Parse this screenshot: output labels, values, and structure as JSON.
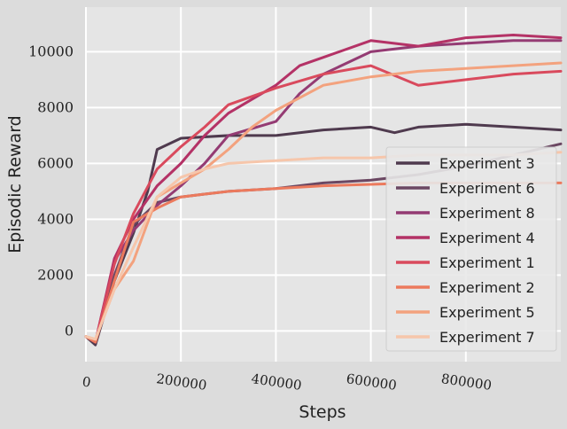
{
  "chart_data": {
    "type": "line",
    "title": "",
    "xlabel": "Steps",
    "ylabel": "Episodic Reward",
    "xlim": [
      0,
      1000000
    ],
    "ylim": [
      -1100,
      11600
    ],
    "x_ticks": [
      0,
      200000,
      400000,
      600000,
      800000
    ],
    "x_tick_labels": [
      "0",
      "200000",
      "400000",
      "600000",
      "800000"
    ],
    "y_ticks": [
      0,
      2000,
      4000,
      6000,
      8000,
      10000
    ],
    "y_tick_labels": [
      "0",
      "2000",
      "4000",
      "6000",
      "8000",
      "10000"
    ],
    "grid": true,
    "legend_position": "center-right",
    "series": [
      {
        "name": "Experiment 3",
        "color": "#4f3a4e",
        "x": [
          0,
          20000,
          60000,
          100000,
          130000,
          150000,
          200000,
          300000,
          400000,
          450000,
          500000,
          600000,
          650000,
          700000,
          800000,
          900000,
          1000000
        ],
        "y": [
          -200,
          -500,
          1800,
          3500,
          5000,
          6500,
          6900,
          7000,
          7000,
          7100,
          7200,
          7300,
          7100,
          7300,
          7400,
          7300,
          7200
        ]
      },
      {
        "name": "Experiment 6",
        "color": "#6b4762",
        "x": [
          0,
          20000,
          60000,
          100000,
          150000,
          200000,
          250000,
          300000,
          400000,
          500000,
          600000,
          700000,
          800000,
          900000,
          1000000
        ],
        "y": [
          -200,
          -400,
          2000,
          3800,
          4600,
          4800,
          4900,
          5000,
          5100,
          5300,
          5400,
          5600,
          5900,
          6300,
          6700
        ]
      },
      {
        "name": "Experiment 8",
        "color": "#943b73",
        "x": [
          0,
          20000,
          60000,
          100000,
          150000,
          200000,
          250000,
          300000,
          400000,
          450000,
          500000,
          600000,
          700000,
          800000,
          900000,
          1000000
        ],
        "y": [
          -200,
          -400,
          2500,
          3600,
          4500,
          5200,
          6000,
          7000,
          7500,
          8500,
          9200,
          10000,
          10200,
          10300,
          10400,
          10400
        ]
      },
      {
        "name": "Experiment 4",
        "color": "#b43266",
        "x": [
          0,
          20000,
          60000,
          100000,
          150000,
          200000,
          250000,
          300000,
          400000,
          450000,
          500000,
          600000,
          700000,
          800000,
          900000,
          1000000
        ],
        "y": [
          -200,
          -400,
          2600,
          4000,
          5200,
          6000,
          7000,
          7800,
          8800,
          9500,
          9800,
          10400,
          10200,
          10500,
          10600,
          10500
        ]
      },
      {
        "name": "Experiment 1",
        "color": "#d94a5d",
        "x": [
          0,
          20000,
          60000,
          100000,
          150000,
          200000,
          250000,
          300000,
          400000,
          500000,
          600000,
          700000,
          800000,
          900000,
          1000000
        ],
        "y": [
          -200,
          -400,
          2400,
          4200,
          5800,
          6600,
          7300,
          8100,
          8700,
          9200,
          9500,
          8800,
          9000,
          9200,
          9300
        ]
      },
      {
        "name": "Experiment 2",
        "color": "#ec7a5d",
        "x": [
          0,
          20000,
          60000,
          100000,
          150000,
          200000,
          250000,
          300000,
          400000,
          500000,
          600000,
          700000,
          800000,
          900000,
          1000000
        ],
        "y": [
          -200,
          -400,
          1800,
          3900,
          4400,
          4800,
          4900,
          5000,
          5100,
          5200,
          5250,
          5300,
          5300,
          5300,
          5300
        ]
      },
      {
        "name": "Experiment 5",
        "color": "#f3a27e",
        "x": [
          0,
          20000,
          60000,
          100000,
          150000,
          200000,
          250000,
          300000,
          350000,
          400000,
          500000,
          600000,
          700000,
          800000,
          900000,
          1000000
        ],
        "y": [
          -200,
          -300,
          1500,
          2500,
          4800,
          5300,
          5800,
          6500,
          7300,
          7900,
          8800,
          9100,
          9300,
          9400,
          9500,
          9600
        ]
      },
      {
        "name": "Experiment 7",
        "color": "#f6c6ab",
        "x": [
          0,
          20000,
          60000,
          100000,
          150000,
          200000,
          250000,
          300000,
          400000,
          500000,
          600000,
          700000,
          800000,
          900000,
          1000000
        ],
        "y": [
          -200,
          -300,
          1500,
          3000,
          4800,
          5500,
          5800,
          6000,
          6100,
          6200,
          6200,
          6300,
          6300,
          6300,
          6400
        ]
      }
    ]
  }
}
